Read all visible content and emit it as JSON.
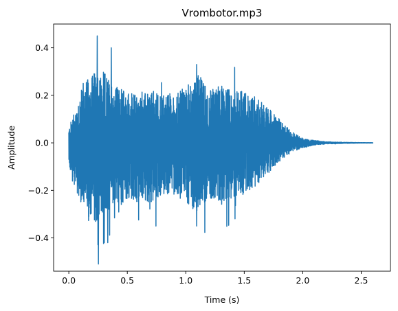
{
  "chart_data": {
    "type": "line",
    "title": "Vrombotor.mp3",
    "xlabel": "Time (s)",
    "ylabel": "Amplitude",
    "xlim": [
      -0.13,
      2.75
    ],
    "ylim": [
      -0.54,
      0.5
    ],
    "xticks": [
      0.0,
      0.5,
      1.0,
      1.5,
      2.0,
      2.5
    ],
    "xtick_labels": [
      "0.0",
      "0.5",
      "1.0",
      "1.5",
      "2.0",
      "2.5"
    ],
    "yticks": [
      -0.4,
      -0.2,
      0.0,
      0.2,
      0.4
    ],
    "ytick_labels": [
      "−0.4",
      "−0.2",
      "0.0",
      "0.2",
      "0.4"
    ],
    "grid": false,
    "series": [
      {
        "color": "#1f77b4",
        "duration": 2.6,
        "peak_max": 0.45,
        "peak_min": -0.51,
        "x": [
          0.0,
          0.1,
          0.2,
          0.3,
          0.4,
          0.5,
          0.6,
          0.7,
          0.8,
          0.9,
          1.0,
          1.1,
          1.2,
          1.3,
          1.4,
          1.5,
          1.6,
          1.7,
          1.8,
          1.9,
          2.0,
          2.1,
          2.2,
          2.3,
          2.4,
          2.5,
          2.6
        ],
        "upper_envelope": [
          0.06,
          0.22,
          0.3,
          0.3,
          0.24,
          0.22,
          0.2,
          0.22,
          0.21,
          0.2,
          0.24,
          0.3,
          0.22,
          0.25,
          0.22,
          0.22,
          0.2,
          0.15,
          0.1,
          0.05,
          0.02,
          0.01,
          0.005,
          0.003,
          0.002,
          0.001,
          0.001
        ],
        "lower_envelope": [
          -0.1,
          -0.26,
          -0.36,
          -0.3,
          -0.27,
          -0.25,
          -0.24,
          -0.25,
          -0.22,
          -0.22,
          -0.25,
          -0.3,
          -0.23,
          -0.25,
          -0.23,
          -0.22,
          -0.18,
          -0.13,
          -0.08,
          -0.04,
          -0.02,
          -0.01,
          -0.005,
          -0.003,
          -0.002,
          -0.001,
          -0.001
        ]
      }
    ]
  }
}
